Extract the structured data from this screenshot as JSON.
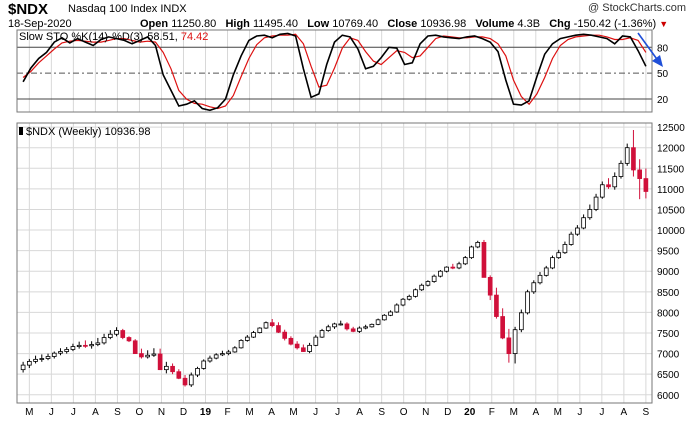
{
  "header": {
    "symbol": "$NDX",
    "name": "Nasdaq 100 Index",
    "exchange": "INDX",
    "date": "18-Sep-2020",
    "watermark": "@ StockCharts.com",
    "open_label": "Open",
    "open": "11250.80",
    "high_label": "High",
    "high": "11495.40",
    "low_label": "Low",
    "low": "10769.40",
    "close_label": "Close",
    "close": "10936.98",
    "volume_label": "Volume",
    "volume": "4.3B",
    "chg_label": "Chg",
    "chg": "-150.42 (-1.36%)"
  },
  "colors": {
    "up": "#000000",
    "down": "#d0103a",
    "stoch_k": "#000000",
    "stoch_d": "#dd1111",
    "grid": "#d8d8d8",
    "arrow": "#1f4fd8"
  },
  "chart_data": [
    {
      "type": "line",
      "title": "Slow STO %K(14) %D(3)",
      "k_label": "Slow STO %K(14)",
      "d_label": "%D(3)",
      "k_last": "58.51",
      "d_last": "74.42",
      "ylim": [
        5,
        100
      ],
      "levels": [
        20,
        50,
        80
      ],
      "level_labels": [
        "20",
        "50",
        "80"
      ],
      "annotation": "arrow pointing down toward %K",
      "series": [
        {
          "name": "%K(14)",
          "values": [
            40,
            56,
            67,
            74,
            86,
            91,
            85,
            90,
            86,
            82,
            89,
            92,
            90,
            88,
            84,
            88,
            92,
            82,
            48,
            30,
            12,
            14,
            18,
            9,
            7,
            10,
            20,
            48,
            70,
            88,
            93,
            94,
            91,
            95,
            96,
            93,
            55,
            22,
            26,
            60,
            86,
            94,
            92,
            78,
            55,
            58,
            68,
            80,
            79,
            60,
            62,
            84,
            93,
            94,
            92,
            91,
            90,
            92,
            93,
            90,
            86,
            75,
            42,
            14,
            13,
            18,
            46,
            72,
            84,
            90,
            92,
            94,
            95,
            94,
            92,
            90,
            84,
            93,
            92,
            76,
            58
          ]
        },
        {
          "name": "%D(3)",
          "values": [
            45,
            52,
            62,
            70,
            78,
            85,
            87,
            88,
            87,
            86,
            86,
            88,
            90,
            90,
            88,
            86,
            87,
            86,
            74,
            55,
            30,
            20,
            15,
            14,
            11,
            9,
            12,
            24,
            46,
            67,
            83,
            91,
            93,
            94,
            94,
            95,
            84,
            58,
            34,
            36,
            56,
            79,
            91,
            88,
            75,
            64,
            60,
            68,
            76,
            74,
            68,
            70,
            80,
            90,
            93,
            92,
            91,
            91,
            92,
            92,
            90,
            84,
            70,
            42,
            23,
            14,
            26,
            45,
            67,
            82,
            89,
            92,
            93,
            94,
            94,
            92,
            89,
            89,
            91,
            88,
            74
          ]
        }
      ]
    },
    {
      "type": "candlestick",
      "title": "$NDX (Weekly) 10936.98",
      "ylim": [
        5800,
        12600
      ],
      "ytick_values": [
        6000,
        6500,
        7000,
        7500,
        8000,
        8500,
        9000,
        9500,
        10000,
        10500,
        11000,
        11500,
        12000,
        12500
      ],
      "ytick_labels": [
        "6000",
        "6500",
        "7000",
        "7500",
        "8000",
        "8500",
        "9000",
        "9500",
        "10000",
        "10500",
        "11000",
        "11500",
        "12000",
        "12500"
      ],
      "xtick_labels": [
        "M",
        "J",
        "J",
        "A",
        "S",
        "O",
        "N",
        "D",
        "19",
        "F",
        "M",
        "A",
        "M",
        "J",
        "J",
        "A",
        "S",
        "O",
        "N",
        "D",
        "20",
        "F",
        "M",
        "A",
        "M",
        "J",
        "J",
        "A",
        "S"
      ],
      "open": [
        6610,
        6720,
        6810,
        6860,
        6880,
        6930,
        7010,
        7050,
        7100,
        7170,
        7200,
        7190,
        7220,
        7260,
        7390,
        7470,
        7560,
        7390,
        7310,
        7000,
        6920,
        6960,
        6990,
        6610,
        6690,
        6560,
        6400,
        6240,
        6480,
        6640,
        6820,
        6890,
        6970,
        7000,
        7040,
        7140,
        7320,
        7400,
        7510,
        7620,
        7750,
        7680,
        7520,
        7370,
        7230,
        7140,
        7050,
        7200,
        7400,
        7560,
        7650,
        7720,
        7720,
        7600,
        7540,
        7620,
        7650,
        7710,
        7820,
        7930,
        8010,
        8180,
        8320,
        8390,
        8550,
        8660,
        8750,
        8880,
        9000,
        9100,
        9080,
        9180,
        9330,
        9590,
        9700,
        8850,
        8420,
        7900,
        7380,
        7000,
        7580,
        7990,
        8500,
        8720,
        8900,
        9080,
        9330,
        9450,
        9650,
        9900,
        10050,
        10300,
        10500,
        10800,
        11100,
        11050,
        11300,
        11620,
        12000,
        11460,
        11250
      ],
      "high": [
        6800,
        6870,
        6950,
        6980,
        7000,
        7050,
        7130,
        7160,
        7240,
        7290,
        7320,
        7300,
        7380,
        7480,
        7570,
        7640,
        7600,
        7420,
        7350,
        7120,
        7080,
        7130,
        7120,
        6800,
        6760,
        6620,
        6480,
        6540,
        6680,
        6860,
        6950,
        7010,
        7070,
        7090,
        7180,
        7350,
        7450,
        7550,
        7640,
        7780,
        7840,
        7760,
        7580,
        7420,
        7300,
        7220,
        7260,
        7450,
        7600,
        7700,
        7750,
        7800,
        7760,
        7650,
        7660,
        7700,
        7730,
        7850,
        7960,
        8050,
        8220,
        8350,
        8430,
        8580,
        8700,
        8780,
        8920,
        9030,
        9120,
        9180,
        9230,
        9370,
        9620,
        9740,
        9760,
        8900,
        8600,
        8100,
        7600,
        7650,
        8070,
        8550,
        8780,
        8980,
        9130,
        9380,
        9520,
        9720,
        9960,
        10120,
        10380,
        10620,
        10880,
        11180,
        11260,
        11400,
        11690,
        12100,
        12430,
        11720,
        11495
      ],
      "low": [
        6540,
        6650,
        6760,
        6800,
        6840,
        6880,
        6960,
        7000,
        7060,
        7120,
        7140,
        7120,
        7180,
        7220,
        7350,
        7420,
        7350,
        7280,
        7000,
        6880,
        6880,
        6920,
        6600,
        6520,
        6500,
        6380,
        6200,
        6190,
        6430,
        6610,
        6780,
        6860,
        6940,
        6960,
        7020,
        7120,
        7290,
        7380,
        7490,
        7600,
        7640,
        7500,
        7320,
        7200,
        7100,
        7040,
        7010,
        7180,
        7380,
        7530,
        7600,
        7680,
        7560,
        7520,
        7500,
        7590,
        7630,
        7690,
        7800,
        7910,
        7990,
        8150,
        8290,
        8360,
        8520,
        8630,
        8720,
        8850,
        8970,
        9050,
        9050,
        9150,
        9300,
        9560,
        8850,
        8300,
        7850,
        7350,
        6780,
        6760,
        7520,
        7950,
        8450,
        8680,
        8870,
        9050,
        9300,
        9420,
        9620,
        9860,
        10020,
        10250,
        10460,
        10760,
        11000,
        10980,
        11250,
        11560,
        11300,
        10750,
        10769
      ],
      "close": [
        6720,
        6810,
        6860,
        6880,
        6930,
        7010,
        7050,
        7100,
        7170,
        7200,
        7190,
        7220,
        7260,
        7390,
        7470,
        7560,
        7390,
        7310,
        7000,
        6920,
        6960,
        6990,
        6610,
        6690,
        6560,
        6400,
        6240,
        6480,
        6640,
        6820,
        6890,
        6970,
        7000,
        7040,
        7140,
        7320,
        7400,
        7510,
        7620,
        7750,
        7680,
        7520,
        7370,
        7230,
        7140,
        7050,
        7200,
        7400,
        7560,
        7650,
        7720,
        7720,
        7600,
        7540,
        7620,
        7650,
        7710,
        7820,
        7930,
        8010,
        8180,
        8320,
        8390,
        8550,
        8660,
        8750,
        8880,
        9000,
        9100,
        9080,
        9180,
        9330,
        9590,
        9700,
        8850,
        8420,
        7900,
        7380,
        7000,
        7580,
        7990,
        8500,
        8720,
        8900,
        9080,
        9330,
        9450,
        9650,
        9900,
        10050,
        10300,
        10500,
        10800,
        11100,
        11050,
        11300,
        11620,
        12000,
        11460,
        11250,
        10937
      ]
    }
  ]
}
